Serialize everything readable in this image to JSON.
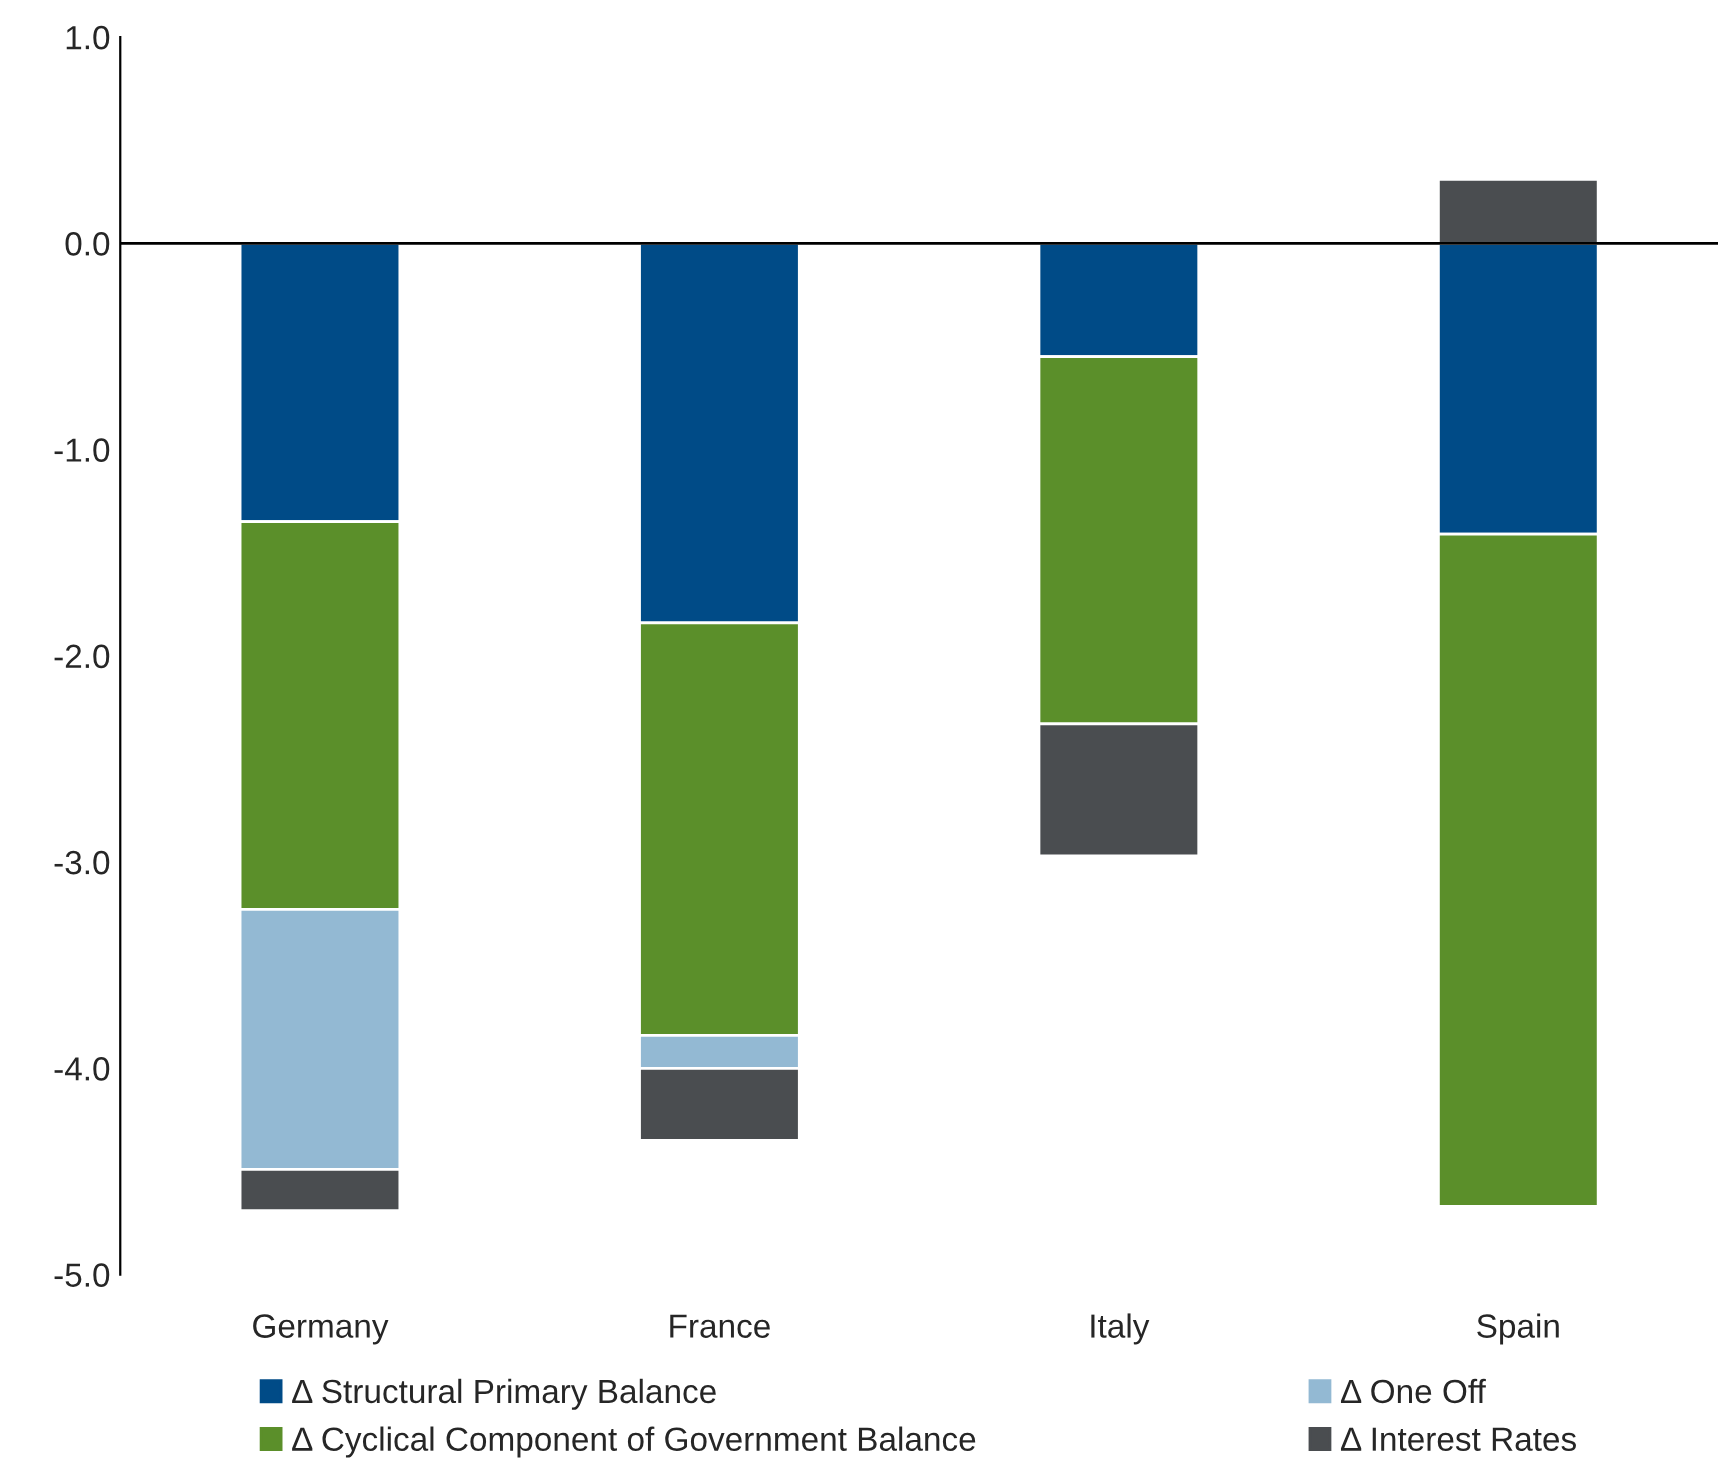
{
  "chart_data": {
    "type": "bar",
    "stacked": true,
    "categories": [
      "Germany",
      "France",
      "Italy",
      "Spain"
    ],
    "series": [
      {
        "name": "Δ Structural Primary Balance",
        "color": "#004b87",
        "values": [
          -1.35,
          -1.84,
          -0.55,
          -1.41
        ]
      },
      {
        "name": "Δ Cyclical Component of Government Balance",
        "color": "#5b8f2a",
        "values": [
          -1.88,
          -2.0,
          -1.78,
          -3.26
        ]
      },
      {
        "name": "Δ One Off",
        "color": "#93b9d3",
        "values": [
          -1.26,
          -0.16,
          null,
          null
        ]
      },
      {
        "name": "Δ Interest Rates",
        "color": "#4a4d50",
        "values": [
          -0.2,
          -0.35,
          -0.64,
          0.31
        ]
      }
    ],
    "ylim": [
      -5.0,
      1.0
    ],
    "yticks": [
      {
        "value": -5,
        "label": "-5.0"
      },
      {
        "value": -4,
        "label": "-4.0"
      },
      {
        "value": -3,
        "label": "-3.0"
      },
      {
        "value": -2,
        "label": "-2.0"
      },
      {
        "value": -1,
        "label": "-1.0"
      },
      {
        "value": 0,
        "label": "0.0"
      },
      {
        "value": 1,
        "label": "1.0"
      }
    ],
    "ref_lines": [
      {
        "axis": "y",
        "value": 0,
        "color": "#000000"
      }
    ],
    "legend": "bottom",
    "grid": false
  }
}
